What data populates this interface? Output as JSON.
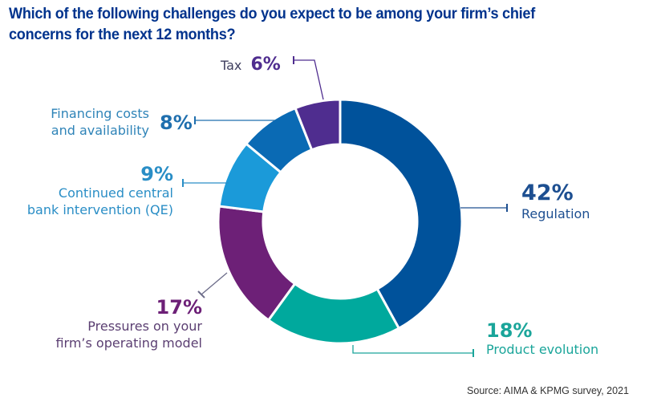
{
  "chart_data": {
    "type": "pie",
    "variant": "donut",
    "title": "Which of the following challenges do you expect to be among your firm’s chief concerns for the next 12 months?",
    "start_angle": "12 o'clock, clockwise",
    "slices": [
      {
        "label": "Regulation",
        "value": 42,
        "value_label": "42%",
        "color": "#00529b"
      },
      {
        "label": "Product evolution",
        "value": 18,
        "value_label": "18%",
        "color": "#00a99d"
      },
      {
        "label": "Pressures on your firm’s operating model",
        "value": 17,
        "value_label": "17%",
        "color": "#6d2077"
      },
      {
        "label": "Continued central bank intervention (QE)",
        "value": 9,
        "value_label": "9%",
        "color": "#1b9ad9"
      },
      {
        "label": "Financing costs and availability",
        "value": 8,
        "value_label": "8%",
        "color": "#0a6ab4"
      },
      {
        "label": "Tax",
        "value": 6,
        "value_label": "6%",
        "color": "#4f2d8f"
      }
    ],
    "source": "Source: AIMA & KPMG survey, 2021"
  },
  "labels": {
    "regulation": {
      "pct": "42%",
      "name": "Regulation",
      "color": "#1d4f91"
    },
    "product": {
      "pct": "18%",
      "name": "Product evolution",
      "color": "#1aa59a"
    },
    "pressures": {
      "pct": "17%",
      "line1": "Pressures on your",
      "line2": "firm’s operating model",
      "color": "#6d2077",
      "name_color": "#5b3f72"
    },
    "qe": {
      "pct": "9%",
      "line1": "Continued central",
      "line2": "bank intervention (QE)",
      "color": "#2a8ec6"
    },
    "financing": {
      "pct": "8%",
      "line1": "Financing costs",
      "line2": "and availability",
      "color": "#1f6fae",
      "name_color": "#2f84b8"
    },
    "tax": {
      "pct": "6%",
      "name": "Tax",
      "color": "#4f2d8f",
      "name_color": "#3f3f5f"
    }
  }
}
